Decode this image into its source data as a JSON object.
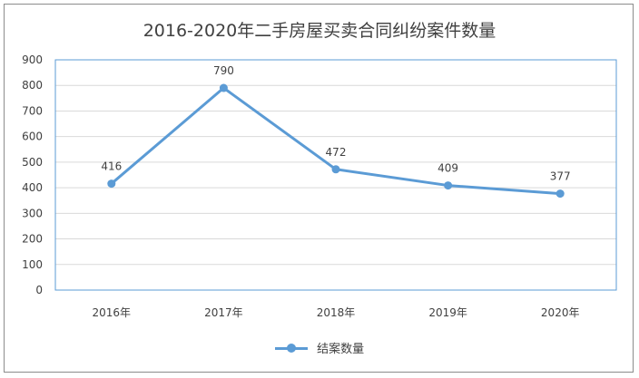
{
  "chart_data": {
    "type": "line",
    "title": "2016-2020年二手房屋买卖合同纠纷案件数量",
    "categories": [
      "2016年",
      "2017年",
      "2018年",
      "2019年",
      "2020年"
    ],
    "series": [
      {
        "name": "结案数量",
        "values": [
          416,
          790,
          472,
          409,
          377
        ]
      }
    ],
    "ylim": [
      0,
      900
    ],
    "yticks": [
      0,
      100,
      200,
      300,
      400,
      500,
      600,
      700,
      800,
      900
    ],
    "grid": true,
    "legend_position": "bottom",
    "colors": {
      "series": "#5b9bd5",
      "grid": "#d9d9d9",
      "axis": "#5b9bd5",
      "text": "#404040"
    }
  }
}
